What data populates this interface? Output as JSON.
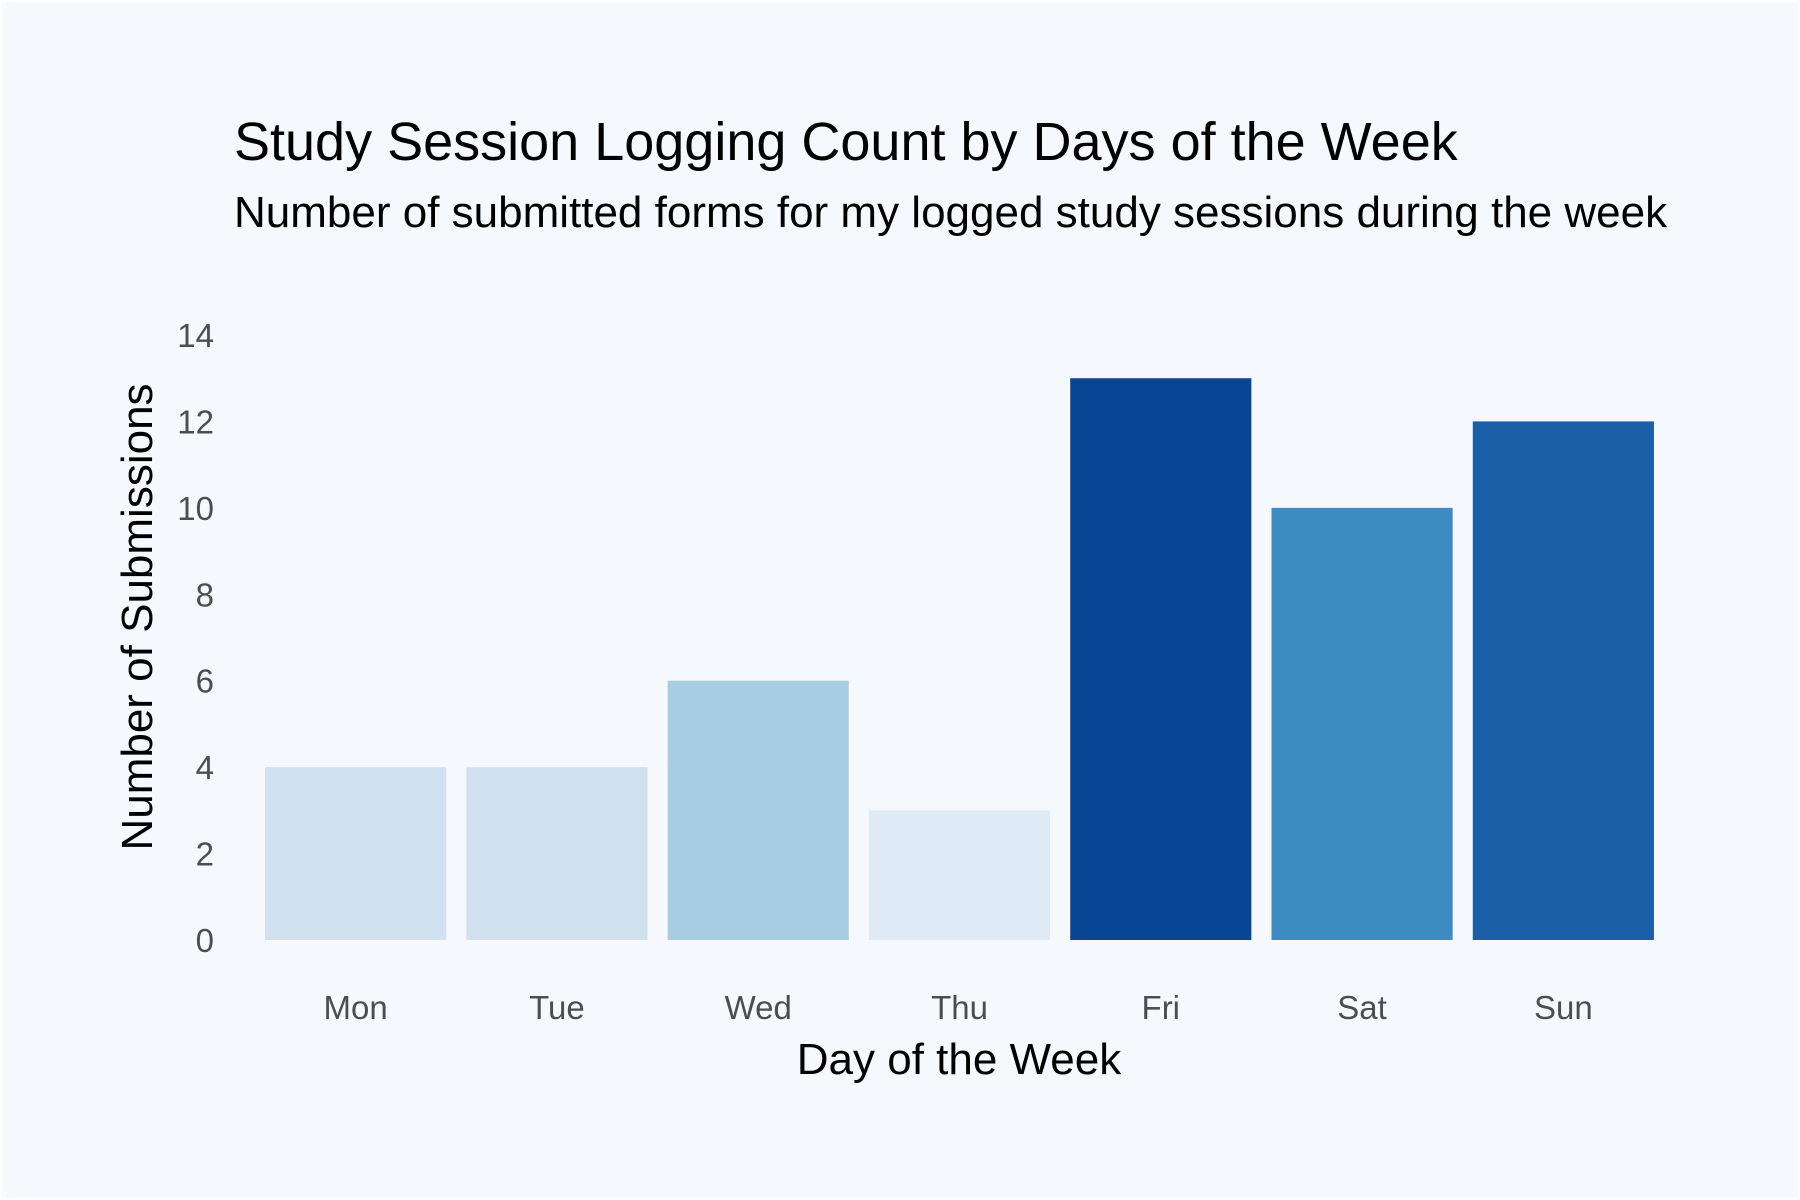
{
  "chart_data": {
    "type": "bar",
    "title": "Study Session Logging Count by Days of the Week",
    "subtitle": "Number of submitted forms for my logged study sessions during the week",
    "xlabel": "Day of the Week",
    "ylabel": "Number of Submissions",
    "categories": [
      "Mon",
      "Tue",
      "Wed",
      "Thu",
      "Fri",
      "Sat",
      "Sun"
    ],
    "values": [
      4,
      4,
      6,
      3,
      13,
      10,
      12
    ],
    "colors": [
      "#d0e1f0",
      "#d0e1f0",
      "#a7cde2",
      "#deeaf5",
      "#084594",
      "#3c8bc3",
      "#1a5fa8"
    ],
    "ylim": [
      0,
      14
    ],
    "yticks": [
      0,
      2,
      4,
      6,
      8,
      10,
      12,
      14
    ],
    "grid": false,
    "legend": "none",
    "background": "#f5f9fe"
  }
}
